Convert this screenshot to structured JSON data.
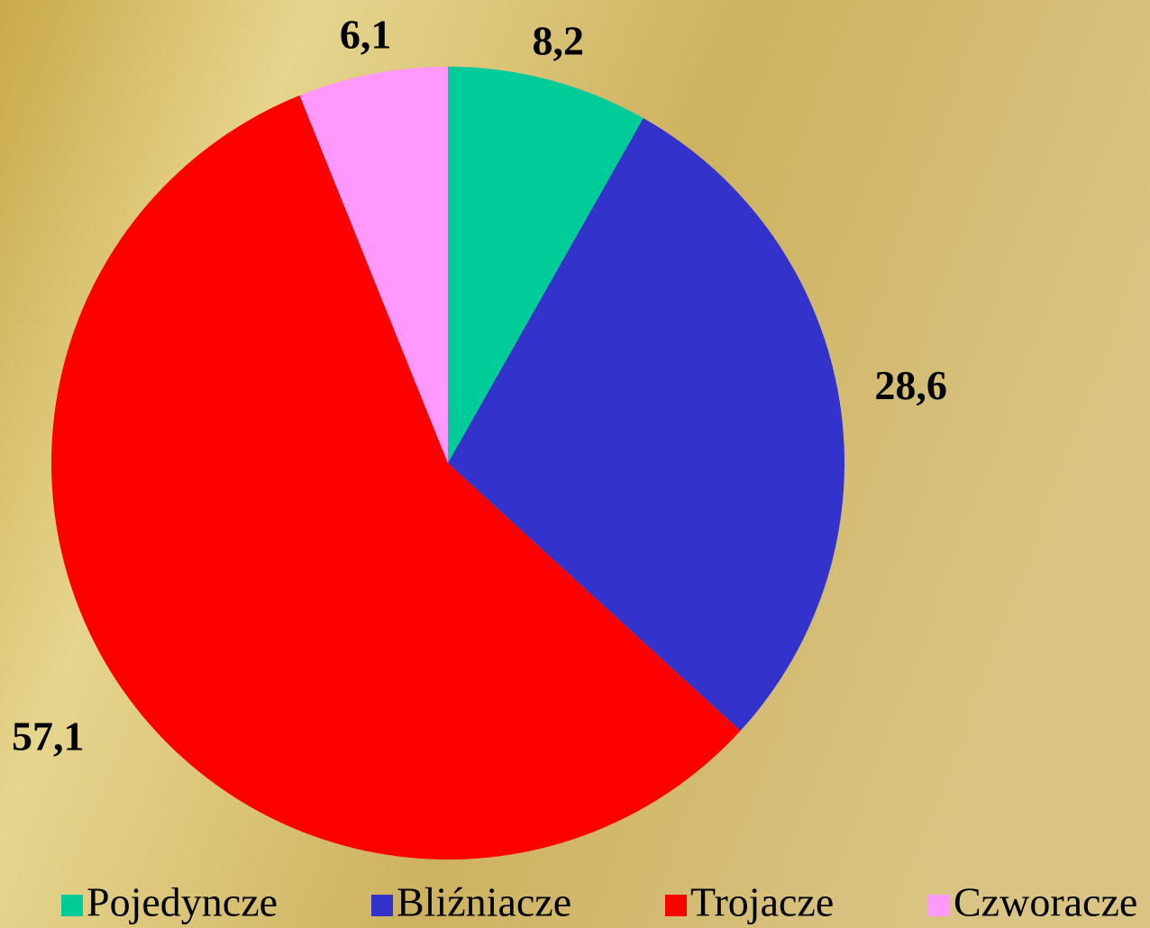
{
  "chart_data": {
    "type": "pie",
    "categories": [
      "Pojedyncze",
      "Bliźniacze",
      "Trojacze",
      "Czworacze"
    ],
    "values": [
      8.2,
      28.6,
      57.1,
      6.1
    ],
    "value_labels": [
      "8,2",
      "28,6",
      "57,1",
      "6,1"
    ],
    "colors": [
      "#00cc99",
      "#3333cc",
      "#ff0000",
      "#ff99ff"
    ],
    "legend": "bottom"
  }
}
